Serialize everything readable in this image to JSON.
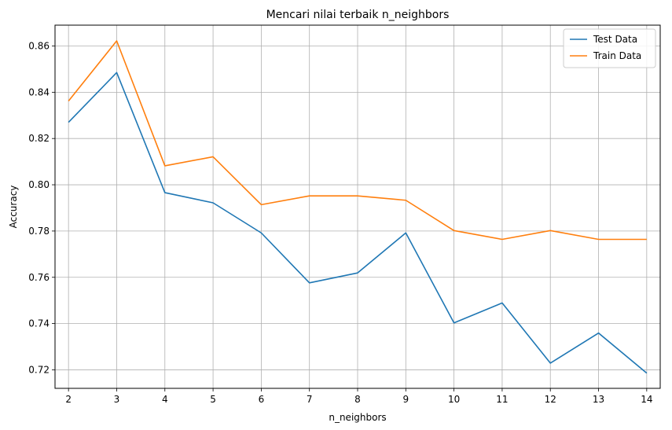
{
  "chart_data": {
    "type": "line",
    "title": "Mencari nilai terbaik n_neighbors",
    "xlabel": "n_neighbors",
    "ylabel": "Accuracy",
    "x": [
      2,
      3,
      4,
      5,
      6,
      7,
      8,
      9,
      10,
      11,
      12,
      13,
      14
    ],
    "xlim": [
      1.72,
      14.28
    ],
    "ylim": [
      0.712,
      0.869
    ],
    "yticks": [
      0.72,
      0.74,
      0.76,
      0.78,
      0.8,
      0.82,
      0.84,
      0.86
    ],
    "ytick_labels": [
      "0.72",
      "0.74",
      "0.76",
      "0.78",
      "0.80",
      "0.82",
      "0.84",
      "0.86"
    ],
    "grid": true,
    "legend_position": "top-right",
    "series": [
      {
        "name": "Test Data",
        "color": "#1f77b4",
        "values": [
          0.827,
          0.8485,
          0.7966,
          0.7922,
          0.7792,
          0.7576,
          0.7619,
          0.7792,
          0.7403,
          0.7489,
          0.7229,
          0.7359,
          0.7186
        ]
      },
      {
        "name": "Train Data",
        "color": "#ff7f0e",
        "values": [
          0.8362,
          0.8622,
          0.8082,
          0.8121,
          0.7914,
          0.7952,
          0.7952,
          0.7933,
          0.7802,
          0.7764,
          0.7802,
          0.7764,
          0.7764
        ]
      }
    ]
  }
}
